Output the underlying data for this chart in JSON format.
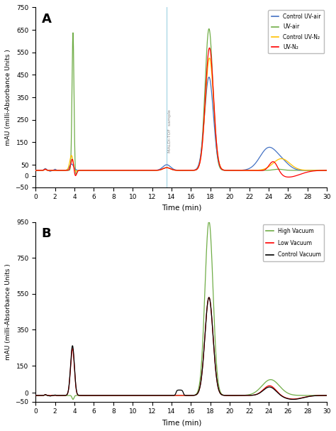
{
  "panel_A": {
    "title": "A",
    "ylim": [
      -50,
      750
    ],
    "xlim": [
      0,
      30
    ],
    "yticks": [
      -50,
      0,
      50,
      150,
      250,
      350,
      450,
      550,
      650,
      750
    ],
    "xticks": [
      0,
      2,
      4,
      6,
      8,
      10,
      12,
      14,
      16,
      18,
      20,
      22,
      24,
      26,
      28,
      30
    ],
    "ylabel": "mAU (milli-Absorbance Units )",
    "xlabel": "Time (min)",
    "maldi_line_x": 13.5,
    "maldi_label": "MALDI-TOF  sample",
    "legend": [
      "Control UV-air",
      "UV-air",
      "Control UV-N₂",
      "UV-N₂"
    ],
    "legend_colors": [
      "#4472c4",
      "#70ad47",
      "#ffc000",
      "#ff0000"
    ]
  },
  "panel_B": {
    "title": "B",
    "ylim": [
      -50,
      950
    ],
    "xlim": [
      0,
      30
    ],
    "yticks": [
      -50,
      0,
      150,
      350,
      550,
      750,
      950
    ],
    "xticks": [
      0,
      2,
      4,
      6,
      8,
      10,
      12,
      14,
      16,
      18,
      20,
      22,
      24,
      26,
      28,
      30
    ],
    "ylabel": "mAU (milli-Absorbance Units )",
    "xlabel": "Time (min)",
    "legend": [
      "High Vacuum",
      "Low Vacuum",
      "Control Vacuum"
    ],
    "legend_colors": [
      "#70ad47",
      "#ff0000",
      "#000000"
    ]
  }
}
